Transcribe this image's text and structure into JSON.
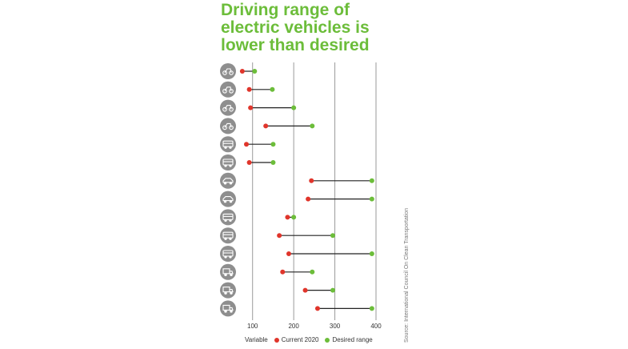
{
  "title_lines": [
    "Driving range of",
    "electric vehicles is",
    "lower than desired"
  ],
  "source": "Source: International Council On Clean Transportation",
  "colors": {
    "title": "#6cbd3a",
    "current": "#e0352b",
    "desired": "#6cbd3a",
    "icon_bg": "#8e8e8e",
    "grid": "#9a9a9a"
  },
  "chart_data": {
    "type": "dumbbell",
    "xlim": [
      50,
      400
    ],
    "xticks": [
      "100",
      "200",
      "300",
      "400"
    ],
    "legend": {
      "title": "Variable",
      "items": [
        "Current 2020",
        "Desired range"
      ]
    },
    "legend_position": "bottom",
    "grid": true,
    "rows": [
      {
        "icon": "bicycle-icon",
        "current": 75,
        "desired": 105
      },
      {
        "icon": "e-scooter-icon",
        "current": 92,
        "desired": 148
      },
      {
        "icon": "scooter-icon",
        "current": 95,
        "desired": 200
      },
      {
        "icon": "motorcycle-icon",
        "current": 132,
        "desired": 245
      },
      {
        "icon": "auto-rickshaw-icon",
        "current": 85,
        "desired": 150
      },
      {
        "icon": "e-rickshaw-icon",
        "current": 92,
        "desired": 150
      },
      {
        "icon": "hatchback-car-icon",
        "current": 243,
        "desired": 390
      },
      {
        "icon": "sedan-car-icon",
        "current": 235,
        "desired": 390
      },
      {
        "icon": "minibus-icon",
        "current": 185,
        "desired": 200
      },
      {
        "icon": "city-bus-icon",
        "current": 165,
        "desired": 295
      },
      {
        "icon": "coach-bus-icon",
        "current": 188,
        "desired": 390
      },
      {
        "icon": "pickup-truck-icon",
        "current": 173,
        "desired": 245
      },
      {
        "icon": "light-truck-icon",
        "current": 228,
        "desired": 295
      },
      {
        "icon": "heavy-truck-icon",
        "current": 258,
        "desired": 390
      }
    ]
  }
}
